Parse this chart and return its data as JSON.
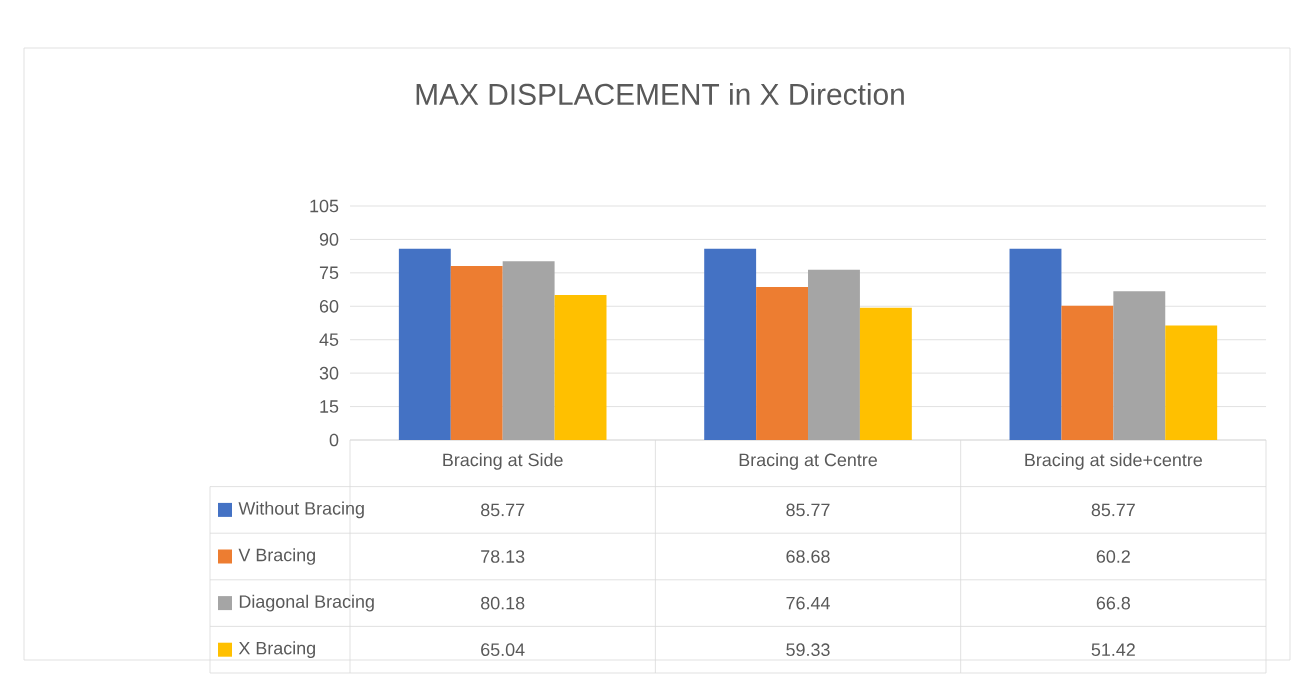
{
  "chart_data": {
    "type": "bar",
    "title": "MAX DISPLACEMENT in X Direction",
    "categories": [
      "Bracing at Side",
      "Bracing at Centre",
      "Bracing at side+centre"
    ],
    "series": [
      {
        "name": "Without Bracing",
        "color": "#4472c4",
        "values": [
          85.77,
          85.77,
          85.77
        ]
      },
      {
        "name": "V Bracing",
        "color": "#ed7d31",
        "values": [
          78.13,
          68.68,
          60.2
        ]
      },
      {
        "name": "Diagonal Bracing",
        "color": "#a5a5a5",
        "values": [
          80.18,
          76.44,
          66.8
        ]
      },
      {
        "name": "X Bracing",
        "color": "#ffc000",
        "values": [
          65.04,
          59.33,
          51.42
        ]
      }
    ],
    "ylim": [
      0,
      105
    ],
    "yticks": [
      0,
      15,
      30,
      45,
      60,
      75,
      90,
      105
    ],
    "grid": "y",
    "data_labels": true,
    "legend": "bottom"
  }
}
